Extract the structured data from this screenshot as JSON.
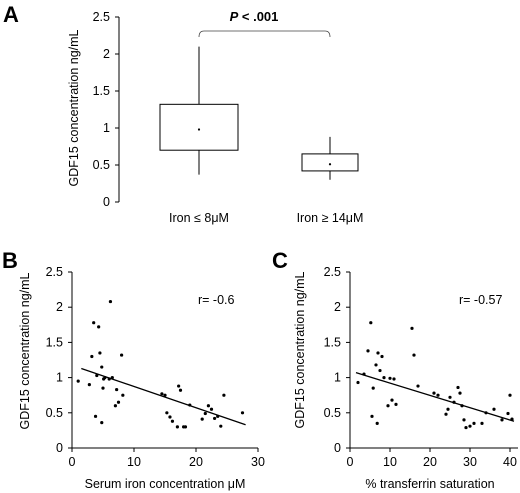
{
  "chart_data": [
    {
      "panel": "A",
      "type": "box",
      "ylabel": "GDF15 concentration ng/mL",
      "ylim": [
        0,
        2.5
      ],
      "yticks": [
        0,
        0.5,
        1,
        1.5,
        2,
        2.5
      ],
      "ytick_labels": [
        "0",
        "0.5",
        "1",
        "1.5",
        "2",
        "2.5"
      ],
      "categories": [
        "Iron ≤ 8μM",
        "Iron ≥ 14μM"
      ],
      "boxes": [
        {
          "min": 0.37,
          "q1": 0.7,
          "median": 0.98,
          "q3": 1.32,
          "max": 2.1
        },
        {
          "min": 0.3,
          "q1": 0.42,
          "median": 0.51,
          "q3": 0.65,
          "max": 0.88
        }
      ],
      "annotation": {
        "p_label": "P",
        "p_text": " < .001"
      }
    },
    {
      "panel": "B",
      "type": "scatter",
      "xlabel": "Serum iron concentration μM",
      "ylabel": "GDF15 concentration ng/mL",
      "xlim": [
        0,
        30
      ],
      "ylim": [
        0,
        2.5
      ],
      "xticks": [
        0,
        10,
        20,
        30
      ],
      "xtick_labels": [
        "0",
        "10",
        "20",
        "30"
      ],
      "yticks": [
        0,
        0.5,
        1,
        1.5,
        2,
        2.5
      ],
      "ytick_labels": [
        "0",
        "0.5",
        "1",
        "1.5",
        "2",
        "2.5"
      ],
      "r_label": "r= -0.6",
      "fit": {
        "x": [
          1.5,
          28
        ],
        "y": [
          1.13,
          0.33
        ]
      },
      "points": [
        [
          1,
          0.95
        ],
        [
          2.8,
          0.9
        ],
        [
          3.2,
          1.3
        ],
        [
          3.5,
          1.78
        ],
        [
          3.8,
          0.45
        ],
        [
          4,
          1.03
        ],
        [
          4.3,
          1.72
        ],
        [
          4.5,
          1.35
        ],
        [
          4.8,
          0.36
        ],
        [
          4.8,
          1.15
        ],
        [
          5,
          0.85
        ],
        [
          5.1,
          0.98
        ],
        [
          5.3,
          1.0
        ],
        [
          6,
          0.98
        ],
        [
          6.2,
          2.08
        ],
        [
          6.5,
          1.0
        ],
        [
          7,
          0.6
        ],
        [
          7.2,
          0.83
        ],
        [
          7.5,
          0.65
        ],
        [
          8,
          1.32
        ],
        [
          8.2,
          0.75
        ],
        [
          14.5,
          0.77
        ],
        [
          15,
          0.75
        ],
        [
          15.3,
          0.5
        ],
        [
          15.8,
          0.44
        ],
        [
          16.2,
          0.38
        ],
        [
          17,
          0.3
        ],
        [
          17.2,
          0.88
        ],
        [
          17.5,
          0.82
        ],
        [
          18,
          0.3
        ],
        [
          18.3,
          0.3
        ],
        [
          19,
          0.61
        ],
        [
          21,
          0.41
        ],
        [
          21.5,
          0.49
        ],
        [
          22,
          0.6
        ],
        [
          22.5,
          0.55
        ],
        [
          23,
          0.42
        ],
        [
          23.5,
          0.45
        ],
        [
          24,
          0.31
        ],
        [
          24.5,
          0.75
        ],
        [
          27.5,
          0.5
        ]
      ]
    },
    {
      "panel": "C",
      "type": "scatter",
      "xlabel": "% transferrin saturation",
      "ylabel": "GDF15 concentration ng/mL",
      "xlim": [
        0,
        42
      ],
      "ylim": [
        0,
        2.5
      ],
      "xticks": [
        0,
        10,
        20,
        30,
        40
      ],
      "xtick_labels": [
        "0",
        "10",
        "20",
        "30",
        "40"
      ],
      "yticks": [
        0,
        0.5,
        1,
        1.5,
        2,
        2.5
      ],
      "ytick_labels": [
        "0",
        "0.5",
        "1",
        "1.5",
        "2",
        "2.5"
      ],
      "r_label": "r= -0.57",
      "fit": {
        "x": [
          1.5,
          41
        ],
        "y": [
          1.07,
          0.38
        ]
      },
      "points": [
        [
          2,
          0.93
        ],
        [
          3.5,
          1.05
        ],
        [
          4.5,
          1.38
        ],
        [
          5.2,
          1.78
        ],
        [
          5.5,
          0.45
        ],
        [
          5.8,
          0.85
        ],
        [
          6.5,
          1.18
        ],
        [
          6.8,
          0.35
        ],
        [
          7,
          1.35
        ],
        [
          7.5,
          1.1
        ],
        [
          8,
          1.3
        ],
        [
          8.5,
          1.0
        ],
        [
          9.5,
          0.6
        ],
        [
          10,
          0.99
        ],
        [
          10.5,
          0.68
        ],
        [
          11,
          0.98
        ],
        [
          11.5,
          0.62
        ],
        [
          15.5,
          1.7
        ],
        [
          16,
          1.32
        ],
        [
          17,
          0.88
        ],
        [
          21,
          0.78
        ],
        [
          22,
          0.75
        ],
        [
          24,
          0.48
        ],
        [
          24.5,
          0.55
        ],
        [
          25,
          0.72
        ],
        [
          26,
          0.65
        ],
        [
          27,
          0.86
        ],
        [
          27.5,
          0.78
        ],
        [
          28,
          0.6
        ],
        [
          28.5,
          0.4
        ],
        [
          29,
          0.29
        ],
        [
          30,
          0.31
        ],
        [
          31,
          0.35
        ],
        [
          33,
          0.35
        ],
        [
          34,
          0.5
        ],
        [
          36,
          0.55
        ],
        [
          38,
          0.4
        ],
        [
          39.5,
          0.49
        ],
        [
          40,
          0.75
        ],
        [
          40.5,
          0.41
        ]
      ]
    }
  ]
}
